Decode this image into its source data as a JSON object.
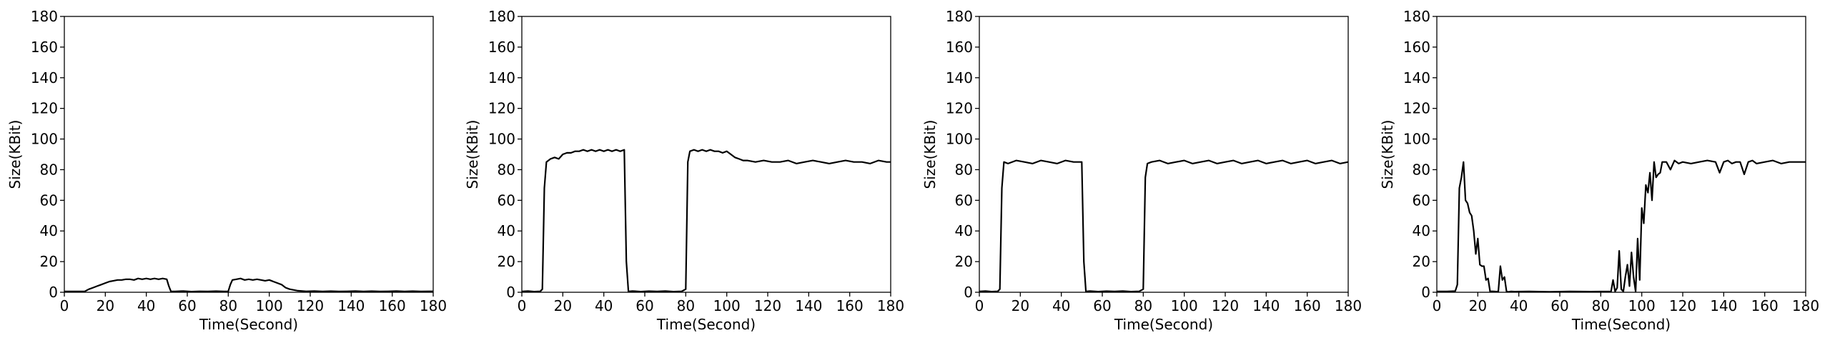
{
  "chart_data": [
    {
      "type": "line",
      "xlabel": "Time(Second)",
      "ylabel": "Size(KBit)",
      "xlim": [
        0,
        180
      ],
      "ylim": [
        0,
        180
      ],
      "xticks": [
        "0",
        "20",
        "40",
        "60",
        "80",
        "100",
        "120",
        "140",
        "160",
        "180"
      ],
      "yticks": [
        "0",
        "20",
        "40",
        "60",
        "80",
        "100",
        "120",
        "140",
        "160",
        "180"
      ],
      "series": [
        {
          "color": "#000000",
          "x": [
            0,
            5,
            10,
            12,
            14,
            16,
            18,
            20,
            22,
            24,
            26,
            28,
            30,
            32,
            34,
            36,
            38,
            40,
            42,
            44,
            46,
            48,
            50,
            51,
            52,
            54,
            58,
            62,
            66,
            70,
            74,
            78,
            80,
            81,
            82,
            84,
            86,
            88,
            90,
            92,
            94,
            96,
            98,
            100,
            102,
            104,
            106,
            108,
            110,
            112,
            114,
            118,
            122,
            126,
            130,
            134,
            138,
            142,
            146,
            150,
            154,
            158,
            162,
            166,
            170,
            174,
            178,
            180
          ],
          "y": [
            0.5,
            0.5,
            0.6,
            2,
            3,
            4,
            5,
            6,
            7,
            7.5,
            8,
            8,
            8.5,
            8.5,
            8,
            9,
            8.5,
            9,
            8.5,
            9,
            8.5,
            9,
            8.5,
            4,
            0.6,
            0.5,
            0.8,
            0.4,
            0.6,
            0.5,
            0.7,
            0.5,
            0.6,
            5,
            8,
            8.5,
            9,
            8,
            8.5,
            8,
            8.5,
            8,
            7.5,
            8,
            7,
            6,
            5,
            3,
            2,
            1.5,
            1,
            0.6,
            0.8,
            0.5,
            0.7,
            0.5,
            0.6,
            0.8,
            0.5,
            0.7,
            0.5,
            0.6,
            0.8,
            0.5,
            0.7,
            0.5,
            0.6,
            0.6
          ]
        }
      ]
    },
    {
      "type": "line",
      "xlabel": "Time(Second)",
      "ylabel": "Size(KBit)",
      "xlim": [
        0,
        180
      ],
      "ylim": [
        0,
        180
      ],
      "xticks": [
        "0",
        "20",
        "40",
        "60",
        "80",
        "100",
        "120",
        "140",
        "160",
        "180"
      ],
      "yticks": [
        "0",
        "20",
        "40",
        "60",
        "80",
        "100",
        "120",
        "140",
        "160",
        "180"
      ],
      "series": [
        {
          "color": "#000000",
          "x": [
            0,
            3,
            6,
            9,
            10,
            11,
            12,
            14,
            16,
            18,
            20,
            22,
            24,
            26,
            28,
            30,
            32,
            34,
            36,
            38,
            40,
            42,
            44,
            46,
            48,
            50,
            51,
            52,
            54,
            58,
            62,
            66,
            70,
            74,
            78,
            80,
            81,
            82,
            84,
            86,
            88,
            90,
            92,
            94,
            96,
            98,
            100,
            102,
            104,
            106,
            108,
            110,
            114,
            118,
            122,
            126,
            130,
            134,
            138,
            142,
            146,
            150,
            154,
            158,
            162,
            166,
            170,
            174,
            178,
            180
          ],
          "y": [
            0.5,
            0.8,
            0.4,
            0.6,
            2,
            68,
            85,
            87,
            88,
            87,
            90,
            91,
            91,
            92,
            92,
            93,
            92,
            93,
            92,
            93,
            92,
            93,
            92,
            93,
            92,
            93,
            20,
            0.5,
            0.8,
            0.4,
            0.7,
            0.5,
            0.8,
            0.4,
            0.6,
            2,
            85,
            92,
            93,
            92,
            93,
            92,
            93,
            92,
            92,
            91,
            92,
            90,
            88,
            87,
            86,
            86,
            85,
            86,
            85,
            85,
            86,
            84,
            85,
            86,
            85,
            84,
            85,
            86,
            85,
            85,
            84,
            86,
            85,
            85
          ]
        }
      ]
    },
    {
      "type": "line",
      "xlabel": "Time(Second)",
      "ylabel": "Size(KBit)",
      "xlim": [
        0,
        180
      ],
      "ylim": [
        0,
        180
      ],
      "xticks": [
        "0",
        "20",
        "40",
        "60",
        "80",
        "100",
        "120",
        "140",
        "160",
        "180"
      ],
      "yticks": [
        "0",
        "20",
        "40",
        "60",
        "80",
        "100",
        "120",
        "140",
        "160",
        "180"
      ],
      "series": [
        {
          "color": "#000000",
          "x": [
            0,
            3,
            6,
            9,
            10,
            11,
            12,
            14,
            18,
            22,
            26,
            30,
            34,
            38,
            42,
            46,
            50,
            51,
            52,
            54,
            58,
            62,
            66,
            70,
            74,
            78,
            80,
            81,
            82,
            84,
            88,
            92,
            96,
            100,
            104,
            108,
            112,
            116,
            120,
            124,
            128,
            132,
            136,
            140,
            144,
            148,
            152,
            156,
            160,
            164,
            168,
            172,
            176,
            180
          ],
          "y": [
            0.5,
            0.8,
            0.4,
            0.6,
            2,
            68,
            85,
            84,
            86,
            85,
            84,
            86,
            85,
            84,
            86,
            85,
            85,
            20,
            0.5,
            0.8,
            0.4,
            0.7,
            0.5,
            0.8,
            0.4,
            0.6,
            2,
            75,
            84,
            85,
            86,
            84,
            85,
            86,
            84,
            85,
            86,
            84,
            85,
            86,
            84,
            85,
            86,
            84,
            85,
            86,
            84,
            85,
            86,
            84,
            85,
            86,
            84,
            85
          ]
        }
      ]
    },
    {
      "type": "line",
      "xlabel": "Time(Second)",
      "ylabel": "Size(KBit)",
      "xlim": [
        0,
        180
      ],
      "ylim": [
        0,
        180
      ],
      "xticks": [
        "0",
        "20",
        "40",
        "60",
        "80",
        "100",
        "120",
        "140",
        "160",
        "180"
      ],
      "yticks": [
        "0",
        "20",
        "40",
        "60",
        "80",
        "100",
        "120",
        "140",
        "160",
        "180"
      ],
      "series": [
        {
          "color": "#000000",
          "x": [
            0,
            5,
            9,
            10,
            11,
            12,
            13,
            14,
            15,
            16,
            17,
            18,
            19,
            20,
            21,
            22,
            23,
            24,
            25,
            26,
            27,
            28,
            29,
            30,
            31,
            32,
            33,
            34,
            35,
            36,
            38,
            45,
            55,
            65,
            75,
            85,
            86,
            87,
            88,
            89,
            90,
            91,
            92,
            93,
            94,
            95,
            96,
            97,
            98,
            99,
            100,
            101,
            102,
            103,
            104,
            105,
            106,
            107,
            108,
            109,
            110,
            112,
            114,
            116,
            118,
            120,
            124,
            128,
            132,
            136,
            138,
            140,
            142,
            144,
            146,
            148,
            150,
            152,
            154,
            156,
            160,
            164,
            168,
            172,
            176,
            180
          ],
          "y": [
            0.5,
            0.5,
            0.8,
            5,
            68,
            75,
            85,
            60,
            58,
            52,
            50,
            40,
            25,
            35,
            18,
            17,
            17,
            8,
            9,
            0.5,
            0.6,
            0.5,
            0.4,
            0.5,
            17,
            8,
            10,
            0.5,
            0.3,
            0.5,
            0.4,
            0.5,
            0.3,
            0.5,
            0.4,
            0.5,
            8,
            0.5,
            3,
            27,
            2,
            0.5,
            10,
            18,
            4,
            26,
            10,
            0.5,
            35,
            8,
            55,
            45,
            70,
            65,
            78,
            60,
            85,
            75,
            77,
            78,
            85,
            85,
            80,
            86,
            84,
            85,
            84,
            85,
            86,
            85,
            78,
            85,
            86,
            84,
            85,
            85,
            77,
            85,
            86,
            84,
            85,
            86,
            84,
            85,
            85,
            85
          ]
        }
      ]
    }
  ]
}
